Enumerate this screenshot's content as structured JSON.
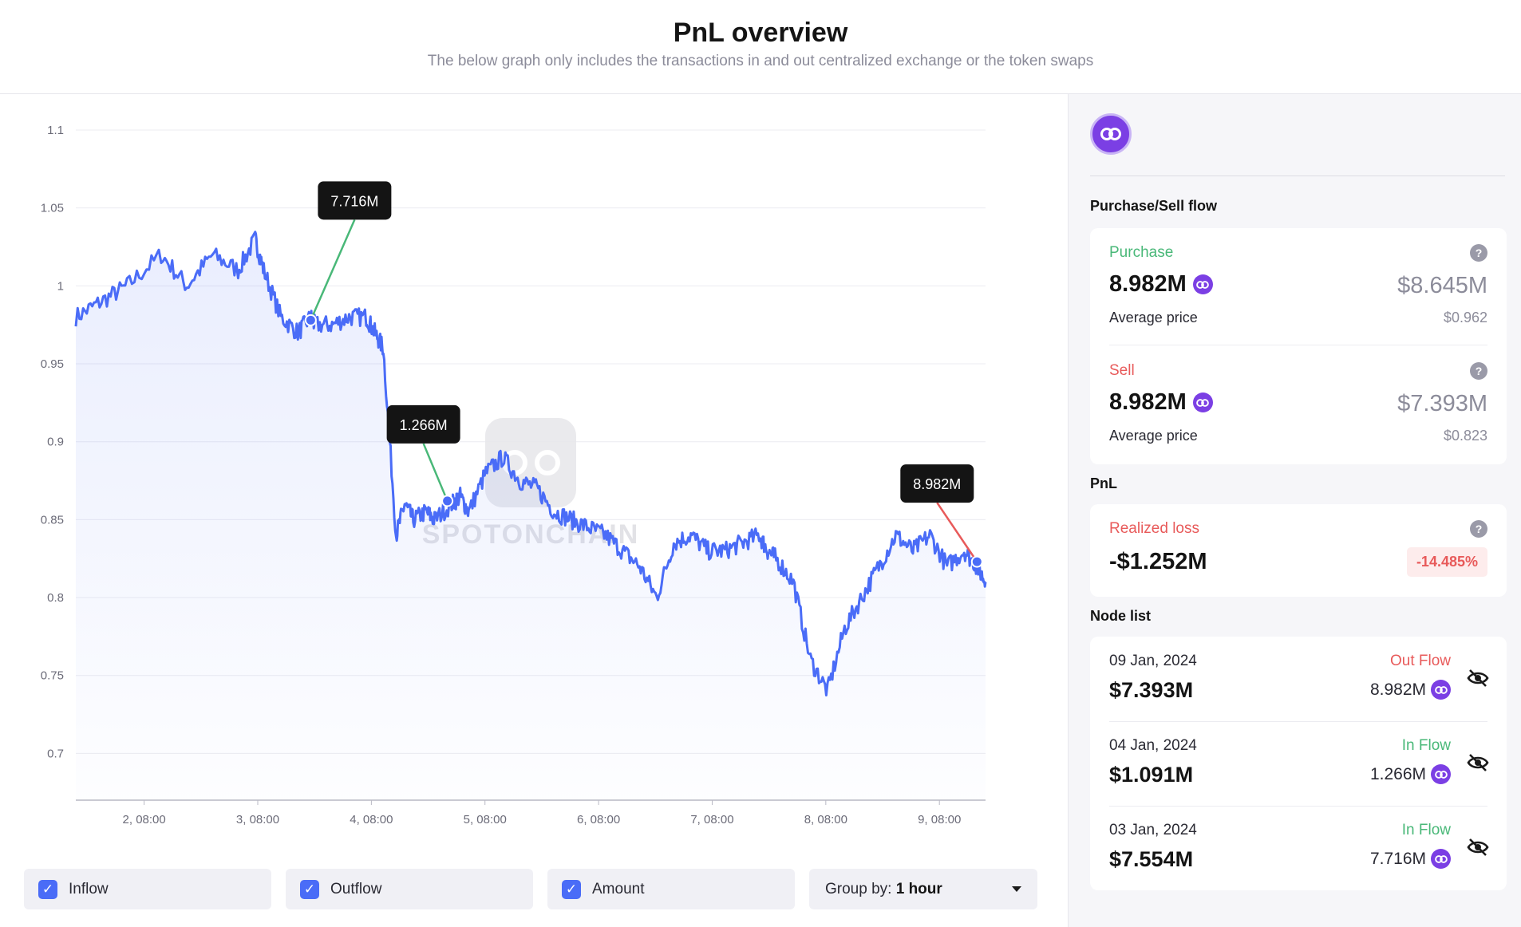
{
  "header": {
    "title": "PnL overview",
    "subtitle": "The below graph only includes the transactions in and out centralized exchange or the token swaps"
  },
  "chart_data": {
    "type": "line",
    "ylim": [
      0.67,
      1.1
    ],
    "yticks": [
      "1.1",
      "1.05",
      "1",
      "0.95",
      "0.9",
      "0.85",
      "0.8",
      "0.75",
      "0.7"
    ],
    "xtick_labels": [
      "2, 08:00",
      "3, 08:00",
      "4, 08:00",
      "5, 08:00",
      "6, 08:00",
      "7, 08:00",
      "8, 08:00",
      "9, 08:00"
    ],
    "grid": true,
    "line_color": "#4a6cf7",
    "watermark": "SPOTONCHAIN",
    "series": [
      {
        "x": [
          0,
          0.3,
          0.6,
          1,
          1.3,
          1.6,
          1.9,
          2.1,
          2.2,
          2.4,
          2.6,
          2.75,
          2.8,
          3.0,
          3.2,
          3.4,
          3.5,
          3.6,
          3.75,
          3.85,
          3.95,
          4.1,
          4.2,
          4.4,
          4.5,
          4.6,
          4.8,
          5.0,
          5.2,
          5.4,
          5.6,
          5.8,
          6.0,
          6.2,
          6.4,
          6.6,
          6.8,
          7.0,
          7.2,
          7.4,
          7.6,
          7.8,
          8.0,
          8.1,
          8.2,
          8.4,
          8.6,
          8.8,
          9.0,
          9.2,
          9.4,
          9.6,
          9.8,
          10.0,
          10.2,
          10.4,
          10.55,
          10.65
        ],
        "y": [
          0.98,
          0.99,
          1.0,
          1.02,
          1.0,
          1.02,
          1.01,
          1.03,
          1.01,
          0.98,
          0.97,
          0.98,
          0.975,
          0.975,
          0.98,
          0.98,
          0.97,
          0.96,
          0.84,
          0.86,
          0.85,
          0.855,
          0.85,
          0.86,
          0.865,
          0.855,
          0.88,
          0.89,
          0.875,
          0.87,
          0.855,
          0.85,
          0.845,
          0.84,
          0.83,
          0.82,
          0.8,
          0.835,
          0.84,
          0.83,
          0.83,
          0.835,
          0.84,
          0.83,
          0.825,
          0.81,
          0.76,
          0.74,
          0.78,
          0.8,
          0.82,
          0.84,
          0.83,
          0.84,
          0.82,
          0.83,
          0.82,
          0.81
        ]
      }
    ],
    "markers": [
      {
        "label": "7.716M",
        "x": 2.75,
        "y": 0.978,
        "flow": "in"
      },
      {
        "label": "1.266M",
        "x": 4.35,
        "y": 0.862,
        "flow": "in"
      },
      {
        "label": "8.982M",
        "x": 10.55,
        "y": 0.823,
        "flow": "out"
      }
    ],
    "xrange": [
      0,
      10.65
    ]
  },
  "legend": {
    "inflow": "Inflow",
    "outflow": "Outflow",
    "amount": "Amount",
    "group_prefix": "Group by:",
    "group_value": "1 hour"
  },
  "sidebar": {
    "purchase_sell_title": "Purchase/Sell flow",
    "purchase": {
      "label": "Purchase",
      "amount": "8.982M",
      "usd": "$8.645M",
      "avg_label": "Average price",
      "avg_value": "$0.962"
    },
    "sell": {
      "label": "Sell",
      "amount": "8.982M",
      "usd": "$7.393M",
      "avg_label": "Average price",
      "avg_value": "$0.823"
    },
    "pnl_title": "PnL",
    "pnl": {
      "label": "Realized loss",
      "value": "-$1.252M",
      "pct": "-14.485%"
    },
    "node_list_title": "Node list",
    "nodes": [
      {
        "date": "09 Jan, 2024",
        "flow": "Out Flow",
        "usd": "$7.393M",
        "amount": "8.982M"
      },
      {
        "date": "04 Jan, 2024",
        "flow": "In Flow",
        "usd": "$1.091M",
        "amount": "1.266M"
      },
      {
        "date": "03 Jan, 2024",
        "flow": "In Flow",
        "usd": "$7.554M",
        "amount": "7.716M"
      }
    ]
  },
  "colors": {
    "accent": "#4a6cf7",
    "inflow": "#49b878",
    "outflow": "#e85a5a",
    "token": "#7b3fe4"
  },
  "icons": {
    "token": "polygon-matic-icon",
    "help": "question-icon",
    "hide": "eye-off-icon",
    "check": "check-icon",
    "dropdown": "caret-down-icon"
  }
}
